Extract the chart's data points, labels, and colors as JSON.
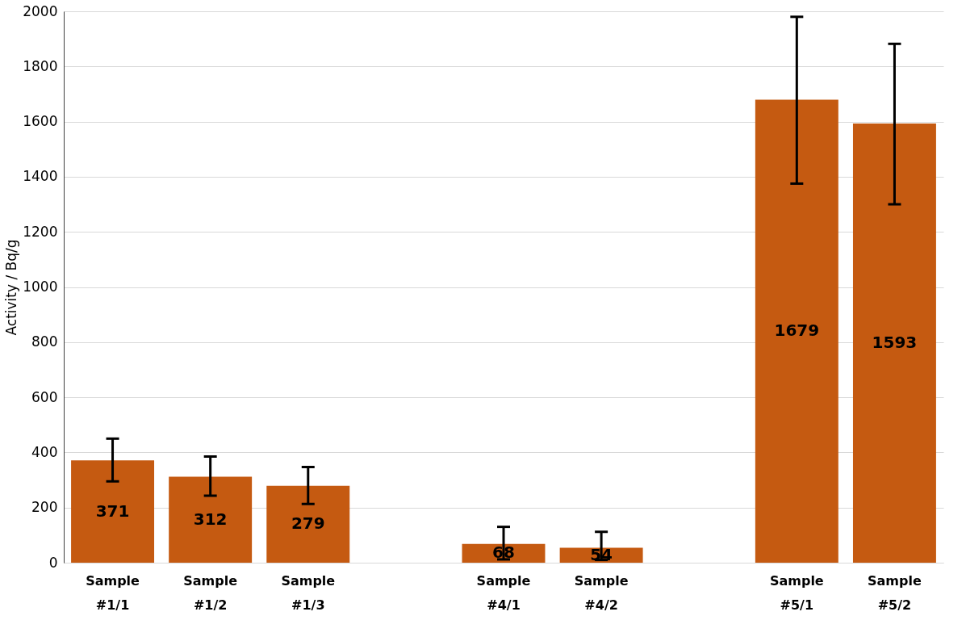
{
  "chart_data": {
    "type": "bar",
    "ylabel": "Activity / Bq/g",
    "categories": [
      "Sample #1/1",
      "Sample #1/2",
      "Sample #1/3",
      null,
      "Sample #4/1",
      "Sample #4/2",
      null,
      "Sample #5/1",
      "Sample #5/2"
    ],
    "values": [
      371,
      312,
      279,
      null,
      68,
      54,
      null,
      1679,
      1593
    ],
    "errors": [
      [
        295,
        450
      ],
      [
        243,
        385
      ],
      [
        213,
        347
      ],
      null,
      [
        12,
        130
      ],
      [
        10,
        112
      ],
      null,
      [
        1375,
        1980
      ],
      [
        1300,
        1882
      ]
    ],
    "color": "#c55a11",
    "data_labels": true,
    "ylim": [
      0,
      2000
    ],
    "yticks": [
      0,
      200,
      400,
      600,
      800,
      1000,
      1200,
      1400,
      1600,
      1800,
      2000
    ],
    "grid": "y"
  }
}
